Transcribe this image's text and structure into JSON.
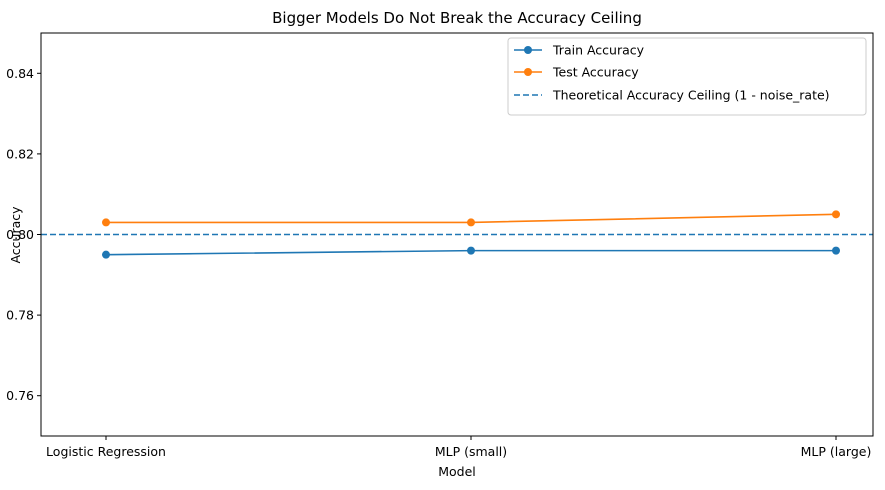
{
  "chart_data": {
    "type": "line",
    "title": "Bigger Models Do Not Break the Accuracy Ceiling",
    "xlabel": "Model",
    "ylabel": "Accuracy",
    "categories": [
      "Logistic Regression",
      "MLP (small)",
      "MLP (large)"
    ],
    "ylim": [
      0.75,
      0.85
    ],
    "yticks": [
      0.76,
      0.78,
      0.8,
      0.82,
      0.84
    ],
    "ytick_labels": [
      "0.76",
      "0.78",
      "0.80",
      "0.82",
      "0.84"
    ],
    "grid": false,
    "legend_position": "top-right",
    "series": [
      {
        "name": "Train Accuracy",
        "values": [
          0.795,
          0.796,
          0.796
        ],
        "color": "#1f77b4",
        "marker": "circle",
        "style": "solid"
      },
      {
        "name": "Test Accuracy",
        "values": [
          0.803,
          0.803,
          0.805
        ],
        "color": "#ff7f0e",
        "marker": "circle",
        "style": "solid"
      }
    ],
    "reference_line": {
      "name": "Theoretical Accuracy Ceiling (1 - noise_rate)",
      "value": 0.8,
      "color": "#1f77b4",
      "style": "dashed"
    }
  }
}
